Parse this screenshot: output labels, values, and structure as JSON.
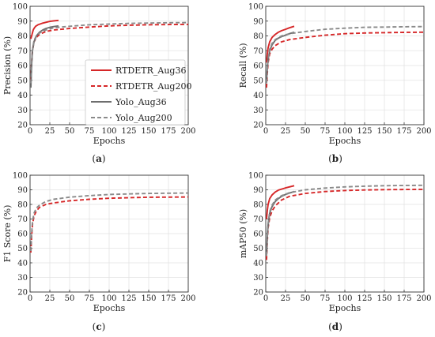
{
  "chart_data": [
    {
      "type": "line",
      "panel_label": "(a)",
      "panel_letter": "a",
      "xlabel": "Epochs",
      "ylabel": "Precision (%)",
      "xlim": [
        0,
        200
      ],
      "ylim": [
        20,
        100
      ],
      "xticks": [
        0,
        25,
        50,
        75,
        100,
        125,
        150,
        175,
        200
      ],
      "yticks": [
        20,
        30,
        40,
        50,
        60,
        70,
        80,
        90,
        100
      ],
      "grid": true,
      "legend_position": "center-right",
      "series": [
        {
          "name": "RTDETR_Aug36",
          "color": "#d62728",
          "dash": "solid",
          "x": [
            1,
            2,
            3,
            4,
            5,
            7,
            10,
            15,
            20,
            25,
            30,
            36
          ],
          "y": [
            78,
            80,
            82,
            84,
            85,
            86.5,
            87.5,
            88.5,
            89.2,
            89.8,
            90.2,
            90.5
          ]
        },
        {
          "name": "RTDETR_Aug200",
          "color": "#d62728",
          "dash": "dashed",
          "x": [
            1,
            2,
            3,
            5,
            8,
            12,
            20,
            30,
            50,
            75,
            100,
            125,
            150,
            175,
            200
          ],
          "y": [
            50,
            62,
            70,
            76,
            79,
            81,
            83,
            84,
            85,
            86,
            86.8,
            87.2,
            87.5,
            87.7,
            87.8
          ]
        },
        {
          "name": "Yolo_Aug36",
          "color": "#6e6e6e",
          "dash": "solid",
          "x": [
            1,
            2,
            3,
            5,
            8,
            12,
            16,
            20,
            25,
            30,
            36
          ],
          "y": [
            45,
            60,
            70,
            76,
            80,
            82.5,
            84,
            85,
            85.8,
            86.3,
            86.8
          ]
        },
        {
          "name": "Yolo_Aug200",
          "color": "#8a8a8a",
          "dash": "dashed",
          "x": [
            1,
            2,
            3,
            5,
            8,
            12,
            20,
            30,
            50,
            75,
            100,
            125,
            150,
            175,
            200
          ],
          "y": [
            48,
            62,
            70,
            77,
            80,
            82,
            84,
            85.5,
            86.5,
            87.5,
            88,
            88.5,
            88.7,
            88.9,
            89
          ]
        }
      ]
    },
    {
      "type": "line",
      "panel_label": "(b)",
      "panel_letter": "b",
      "xlabel": "Epochs",
      "ylabel": "Recall (%)",
      "xlim": [
        0,
        200
      ],
      "ylim": [
        20,
        100
      ],
      "xticks": [
        0,
        25,
        50,
        75,
        100,
        125,
        150,
        175,
        200
      ],
      "yticks": [
        20,
        30,
        40,
        50,
        60,
        70,
        80,
        90,
        100
      ],
      "grid": true,
      "series": [
        {
          "name": "RTDETR_Aug36",
          "color": "#d62728",
          "dash": "solid",
          "x": [
            1,
            2,
            3,
            5,
            8,
            12,
            16,
            20,
            25,
            30,
            36
          ],
          "y": [
            62,
            68,
            72,
            76,
            79,
            81,
            82.5,
            83.5,
            84.5,
            85.5,
            86.5
          ]
        },
        {
          "name": "RTDETR_Aug200",
          "color": "#d62728",
          "dash": "dashed",
          "x": [
            1,
            2,
            3,
            5,
            8,
            12,
            20,
            30,
            50,
            75,
            100,
            125,
            150,
            175,
            200
          ],
          "y": [
            45,
            55,
            62,
            68,
            71,
            73.5,
            76,
            77.5,
            79,
            80.5,
            81.5,
            82,
            82.2,
            82.4,
            82.5
          ]
        },
        {
          "name": "Yolo_Aug36",
          "color": "#6e6e6e",
          "dash": "solid",
          "x": [
            1,
            2,
            3,
            5,
            8,
            12,
            16,
            20,
            25,
            30,
            36
          ],
          "y": [
            50,
            58,
            64,
            70,
            74,
            77,
            78.5,
            79.5,
            80.5,
            81.5,
            82.5
          ]
        },
        {
          "name": "Yolo_Aug200",
          "color": "#8a8a8a",
          "dash": "dashed",
          "x": [
            1,
            2,
            3,
            5,
            8,
            12,
            20,
            30,
            50,
            75,
            100,
            125,
            150,
            175,
            200
          ],
          "y": [
            48,
            58,
            65,
            71,
            75,
            77.5,
            80,
            81.5,
            83,
            84.5,
            85.2,
            85.8,
            86,
            86.2,
            86.3
          ]
        }
      ]
    },
    {
      "type": "line",
      "panel_label": "(c)",
      "panel_letter": "c",
      "xlabel": "Epochs",
      "ylabel": "F1 Score (%)",
      "xlim": [
        0,
        200
      ],
      "ylim": [
        20,
        100
      ],
      "xticks": [
        0,
        25,
        50,
        75,
        100,
        125,
        150,
        175,
        200
      ],
      "yticks": [
        20,
        30,
        40,
        50,
        60,
        70,
        80,
        90,
        100
      ],
      "grid": true,
      "series": [
        {
          "name": "RTDETR_Aug200",
          "color": "#d62728",
          "dash": "dashed",
          "x": [
            1,
            2,
            3,
            5,
            8,
            12,
            20,
            30,
            50,
            75,
            100,
            125,
            150,
            175,
            200
          ],
          "y": [
            47,
            58,
            66,
            72,
            75.5,
            78,
            80,
            81,
            82.5,
            83.5,
            84.2,
            84.6,
            84.9,
            85,
            85.1
          ]
        },
        {
          "name": "Yolo_Aug200",
          "color": "#8a8a8a",
          "dash": "dashed",
          "x": [
            1,
            2,
            3,
            5,
            8,
            12,
            20,
            30,
            50,
            75,
            100,
            125,
            150,
            175,
            200
          ],
          "y": [
            48,
            60,
            68,
            74,
            77.5,
            79.5,
            82,
            83.5,
            85,
            86,
            86.8,
            87.2,
            87.5,
            87.7,
            87.8
          ]
        }
      ]
    },
    {
      "type": "line",
      "panel_label": "(d)",
      "panel_letter": "d",
      "xlabel": "Epochs",
      "ylabel": "mAP50 (%)",
      "xlim": [
        0,
        200
      ],
      "ylim": [
        20,
        100
      ],
      "xticks": [
        0,
        25,
        50,
        75,
        100,
        125,
        150,
        175,
        200
      ],
      "yticks": [
        20,
        30,
        40,
        50,
        60,
        70,
        80,
        90,
        100
      ],
      "grid": true,
      "series": [
        {
          "name": "RTDETR_Aug36",
          "color": "#d62728",
          "dash": "solid",
          "x": [
            1,
            2,
            3,
            5,
            8,
            12,
            16,
            20,
            25,
            30,
            36
          ],
          "y": [
            70,
            76,
            80,
            84,
            86.5,
            88.5,
            89.8,
            90.5,
            91.3,
            92,
            92.8
          ]
        },
        {
          "name": "RTDETR_Aug200",
          "color": "#d62728",
          "dash": "dashed",
          "x": [
            1,
            2,
            3,
            5,
            8,
            12,
            20,
            30,
            50,
            75,
            100,
            125,
            150,
            175,
            200
          ],
          "y": [
            42,
            55,
            64,
            71,
            75.5,
            79,
            83,
            85.5,
            87.5,
            88.8,
            89.5,
            89.9,
            90.1,
            90.2,
            90.3
          ]
        },
        {
          "name": "Yolo_Aug36",
          "color": "#6e6e6e",
          "dash": "solid",
          "x": [
            1,
            2,
            3,
            5,
            8,
            12,
            16,
            20,
            25,
            30,
            36
          ],
          "y": [
            45,
            58,
            66,
            74,
            78.5,
            82,
            84,
            85.5,
            86.8,
            87.8,
            88.8
          ]
        },
        {
          "name": "Yolo_Aug200",
          "color": "#8a8a8a",
          "dash": "dashed",
          "x": [
            1,
            2,
            3,
            5,
            8,
            12,
            20,
            30,
            50,
            75,
            100,
            125,
            150,
            175,
            200
          ],
          "y": [
            45,
            58,
            67,
            75,
            79.5,
            83,
            86,
            88,
            90,
            91.2,
            92,
            92.5,
            92.8,
            93,
            93.1
          ]
        }
      ]
    }
  ]
}
